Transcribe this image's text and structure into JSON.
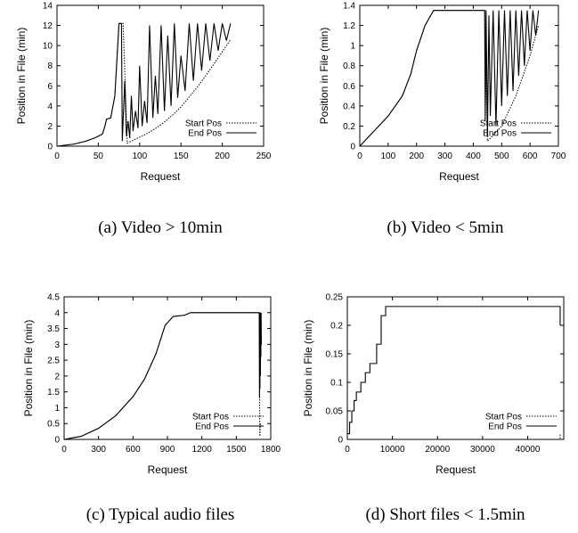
{
  "chart_data": [
    {
      "type": "line",
      "caption": "(a) Video > 10min",
      "xlabel": "Request",
      "ylabel": "Position in File (min)",
      "xlim": [
        0,
        250
      ],
      "ylim": [
        0,
        14
      ],
      "xticks": [
        0,
        50,
        100,
        150,
        200,
        250
      ],
      "yticks": [
        0,
        2,
        4,
        6,
        8,
        10,
        12,
        14
      ],
      "legend_position": "bottom-right",
      "series": [
        {
          "name": "Start Pos",
          "style": "dotted",
          "x": [
            0,
            20,
            35,
            45,
            55,
            58,
            60,
            65,
            70,
            75,
            80,
            85,
            90,
            100,
            110,
            120,
            130,
            140,
            150,
            160,
            170,
            180,
            190,
            200,
            210
          ],
          "y": [
            0,
            0.2,
            0.5,
            0.8,
            1.2,
            2.0,
            2.7,
            2.8,
            5.0,
            12.2,
            12.2,
            0.3,
            0.5,
            0.9,
            1.3,
            1.8,
            2.4,
            3.1,
            3.9,
            4.9,
            5.9,
            7.0,
            8.2,
            9.4,
            10.6
          ]
        },
        {
          "name": "End Pos",
          "style": "solid",
          "x": [
            0,
            20,
            35,
            45,
            55,
            58,
            60,
            65,
            70,
            75,
            78,
            79,
            82,
            84,
            86,
            88,
            90,
            92,
            95,
            98,
            100,
            103,
            106,
            109,
            112,
            116,
            119,
            122,
            126,
            130,
            134,
            138,
            142,
            146,
            150,
            155,
            160,
            165,
            170,
            175,
            180,
            185,
            190,
            195,
            200,
            205,
            210
          ],
          "y": [
            0,
            0.2,
            0.5,
            0.8,
            1.2,
            2.0,
            2.7,
            2.8,
            5.0,
            12.2,
            12.2,
            0.5,
            6.5,
            1.0,
            2.5,
            0.8,
            5.0,
            1.5,
            3.5,
            1.8,
            8.0,
            2.0,
            4.5,
            2.3,
            12.0,
            2.8,
            7.0,
            3.2,
            12.0,
            3.5,
            11.0,
            4.0,
            12.2,
            4.8,
            9.0,
            5.5,
            12.2,
            6.5,
            12.2,
            7.5,
            12.2,
            8.5,
            12.2,
            9.5,
            12.2,
            10.5,
            12.2
          ]
        }
      ]
    },
    {
      "type": "line",
      "caption": "(b) Video < 5min",
      "xlabel": "Request",
      "ylabel": "Position in File (min)",
      "xlim": [
        0,
        700
      ],
      "ylim": [
        0,
        1.4
      ],
      "xticks": [
        0,
        100,
        200,
        300,
        400,
        500,
        600,
        700
      ],
      "yticks": [
        0,
        0.2,
        0.4,
        0.6,
        0.8,
        1,
        1.2,
        1.4
      ],
      "legend_position": "bottom-right",
      "series": [
        {
          "name": "Start Pos",
          "style": "dotted",
          "x": [
            0,
            50,
            100,
            150,
            180,
            200,
            230,
            260,
            300,
            440,
            450,
            500,
            550,
            600,
            630
          ],
          "y": [
            0,
            0.15,
            0.3,
            0.5,
            0.72,
            0.95,
            1.2,
            1.35,
            1.35,
            1.35,
            0.05,
            0.2,
            0.5,
            0.9,
            1.2
          ]
        },
        {
          "name": "End Pos",
          "style": "solid",
          "x": [
            0,
            50,
            100,
            150,
            180,
            200,
            230,
            260,
            300,
            440,
            442,
            445,
            450,
            455,
            460,
            470,
            480,
            490,
            500,
            510,
            520,
            530,
            540,
            550,
            560,
            570,
            580,
            590,
            600,
            610,
            620,
            630
          ],
          "y": [
            0,
            0.15,
            0.3,
            0.5,
            0.72,
            0.95,
            1.2,
            1.35,
            1.35,
            1.35,
            0.25,
            1.35,
            0.1,
            1.3,
            0.3,
            1.35,
            0.2,
            1.35,
            0.4,
            1.35,
            0.5,
            1.35,
            0.55,
            1.35,
            0.7,
            1.35,
            0.8,
            1.35,
            0.95,
            1.35,
            1.1,
            1.35
          ]
        }
      ]
    },
    {
      "type": "line",
      "caption": "(c) Typical audio files",
      "xlabel": "Request",
      "ylabel": "Position in File (min)",
      "xlim": [
        0,
        1800
      ],
      "ylim": [
        0,
        4.5
      ],
      "xticks": [
        0,
        300,
        600,
        900,
        1200,
        1500,
        1800
      ],
      "yticks": [
        0,
        0.5,
        1,
        1.5,
        2,
        2.5,
        3,
        3.5,
        4,
        4.5
      ],
      "legend_position": "bottom-right",
      "series": [
        {
          "name": "Start Pos",
          "style": "dotted",
          "x": [
            0,
            150,
            300,
            450,
            600,
            700,
            800,
            880,
            950,
            1050,
            1100,
            1700,
            1705,
            1710
          ],
          "y": [
            0,
            0.1,
            0.35,
            0.75,
            1.35,
            1.9,
            2.7,
            3.6,
            3.88,
            3.92,
            4.0,
            4.0,
            0.1,
            0.5
          ]
        },
        {
          "name": "End Pos",
          "style": "solid",
          "x": [
            0,
            150,
            300,
            450,
            600,
            700,
            800,
            880,
            950,
            1050,
            1100,
            1700,
            1702,
            1704,
            1706,
            1708,
            1710,
            1712,
            1714,
            1716,
            1718
          ],
          "y": [
            0,
            0.1,
            0.35,
            0.75,
            1.35,
            1.9,
            2.7,
            3.6,
            3.88,
            3.92,
            4.0,
            4.0,
            1.3,
            4.0,
            1.6,
            4.0,
            2.0,
            4.0,
            2.6,
            4.0,
            3.0
          ]
        }
      ]
    },
    {
      "type": "line",
      "caption": "(d) Short files < 1.5min",
      "xlabel": "Request",
      "ylabel": "Position in File (min)",
      "xlim": [
        0,
        48000
      ],
      "ylim": [
        0,
        0.25
      ],
      "xticks": [
        0,
        10000,
        20000,
        30000,
        40000
      ],
      "yticks": [
        0,
        0.05,
        0.1,
        0.15,
        0.2,
        0.25
      ],
      "legend_position": "bottom-right",
      "series": [
        {
          "name": "Start Pos",
          "style": "dotted",
          "x": [
            0,
            47200,
            47200
          ],
          "y": [
            0,
            0,
            0.01
          ]
        },
        {
          "name": "End Pos",
          "style": "solid",
          "step": true,
          "x": [
            0,
            500,
            1000,
            1500,
            2000,
            3000,
            4000,
            5000,
            6500,
            7500,
            8500,
            47200,
            47200
          ],
          "y": [
            0.01,
            0.03,
            0.05,
            0.068,
            0.083,
            0.1,
            0.117,
            0.133,
            0.167,
            0.217,
            0.233,
            0.233,
            0.2
          ]
        }
      ]
    }
  ]
}
